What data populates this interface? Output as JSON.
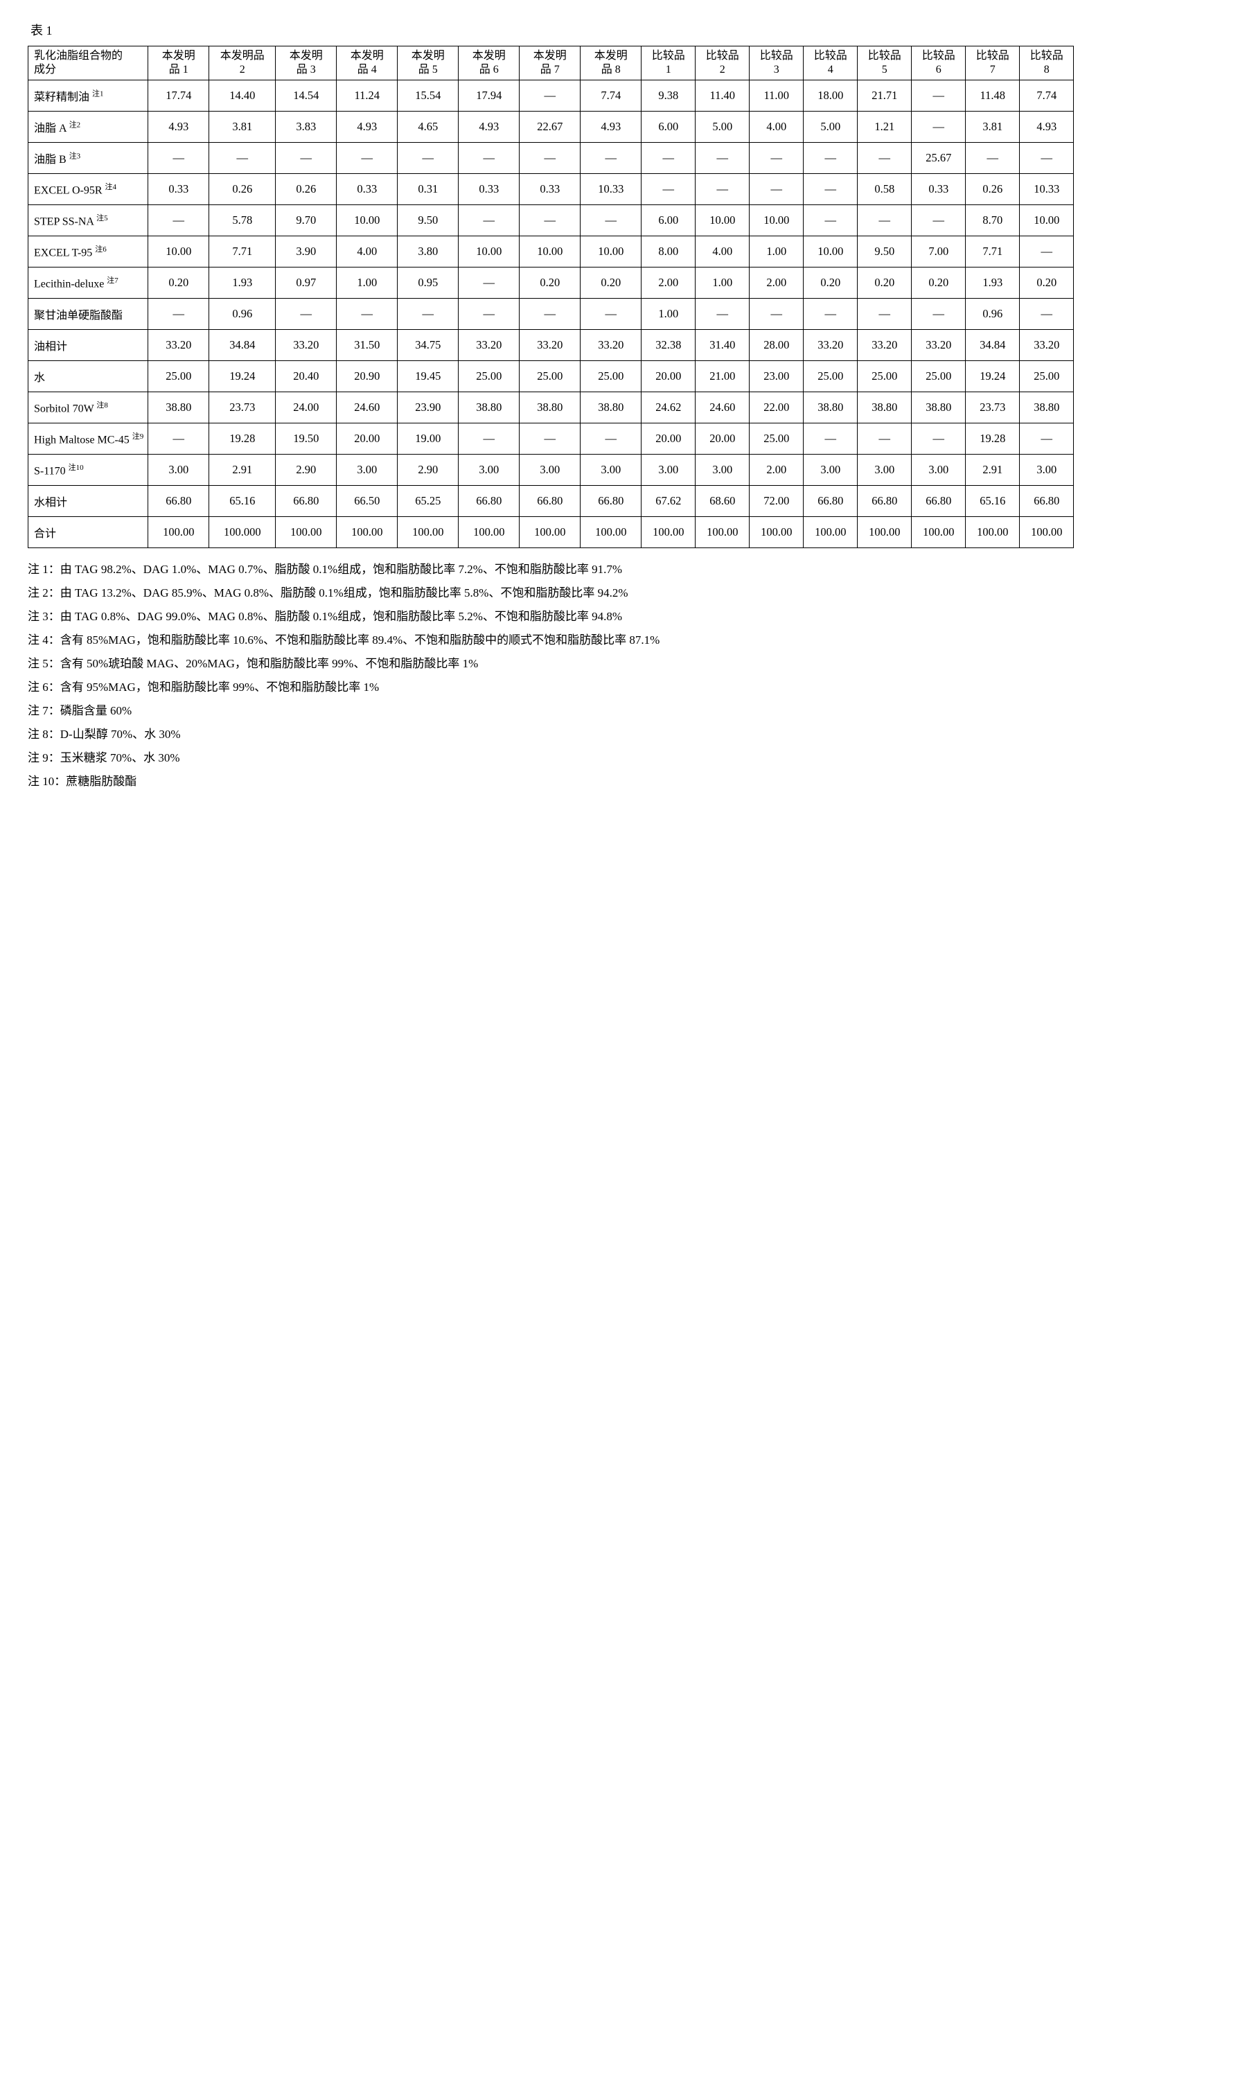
{
  "caption": "表 1",
  "col_header_label": "乳化油脂组合物的\n成分",
  "inv_label_prefix": "本发明\n品",
  "inv_label_2": "本发明品\n2",
  "comp_label_prefix": "比较品",
  "inv_nums": [
    "1",
    "2",
    "3",
    "4",
    "5",
    "6",
    "7",
    "8"
  ],
  "comp_nums": [
    "1",
    "2",
    "3",
    "4",
    "5",
    "6",
    "7",
    "8"
  ],
  "rows": [
    {
      "name": "菜籽精制油",
      "sup": "注1",
      "v": [
        "17.74",
        "14.40",
        "14.54",
        "11.24",
        "15.54",
        "17.94",
        "—",
        "7.74",
        "9.38",
        "11.40",
        "11.00",
        "18.00",
        "21.71",
        "—",
        "11.48",
        "7.74"
      ]
    },
    {
      "name": "油脂 A",
      "sup": "注2",
      "v": [
        "4.93",
        "3.81",
        "3.83",
        "4.93",
        "4.65",
        "4.93",
        "22.67",
        "4.93",
        "6.00",
        "5.00",
        "4.00",
        "5.00",
        "1.21",
        "—",
        "3.81",
        "4.93"
      ]
    },
    {
      "name": "油脂 B",
      "sup": "注3",
      "v": [
        "—",
        "—",
        "—",
        "—",
        "—",
        "—",
        "—",
        "—",
        "—",
        "—",
        "—",
        "—",
        "—",
        "25.67",
        "—",
        "—"
      ]
    },
    {
      "name": "EXCEL O-95R",
      "sup": "注4",
      "v": [
        "0.33",
        "0.26",
        "0.26",
        "0.33",
        "0.31",
        "0.33",
        "0.33",
        "10.33",
        "—",
        "—",
        "—",
        "—",
        "0.58",
        "0.33",
        "0.26",
        "10.33"
      ]
    },
    {
      "name": "STEP SS-NA",
      "sup": "注5",
      "v": [
        "—",
        "5.78",
        "9.70",
        "10.00",
        "9.50",
        "—",
        "—",
        "—",
        "6.00",
        "10.00",
        "10.00",
        "—",
        "—",
        "—",
        "8.70",
        "10.00"
      ]
    },
    {
      "name": "EXCEL T-95",
      "sup": "注6",
      "v": [
        "10.00",
        "7.71",
        "3.90",
        "4.00",
        "3.80",
        "10.00",
        "10.00",
        "10.00",
        "8.00",
        "4.00",
        "1.00",
        "10.00",
        "9.50",
        "7.00",
        "7.71",
        "—"
      ]
    },
    {
      "name": "Lecithin-deluxe",
      "sup": "注7",
      "v": [
        "0.20",
        "1.93",
        "0.97",
        "1.00",
        "0.95",
        "—",
        "0.20",
        "0.20",
        "2.00",
        "1.00",
        "2.00",
        "0.20",
        "0.20",
        "0.20",
        "1.93",
        "0.20"
      ]
    },
    {
      "name": "聚甘油单硬脂酸酯",
      "sup": "",
      "v": [
        "—",
        "0.96",
        "—",
        "—",
        "—",
        "—",
        "—",
        "—",
        "1.00",
        "—",
        "—",
        "—",
        "—",
        "—",
        "0.96",
        "—"
      ]
    },
    {
      "name": "油相计",
      "sup": "",
      "v": [
        "33.20",
        "34.84",
        "33.20",
        "31.50",
        "34.75",
        "33.20",
        "33.20",
        "33.20",
        "32.38",
        "31.40",
        "28.00",
        "33.20",
        "33.20",
        "33.20",
        "34.84",
        "33.20"
      ]
    },
    {
      "name": "水",
      "sup": "",
      "v": [
        "25.00",
        "19.24",
        "20.40",
        "20.90",
        "19.45",
        "25.00",
        "25.00",
        "25.00",
        "20.00",
        "21.00",
        "23.00",
        "25.00",
        "25.00",
        "25.00",
        "19.24",
        "25.00"
      ]
    },
    {
      "name": "Sorbitol 70W",
      "sup": "注8",
      "v": [
        "38.80",
        "23.73",
        "24.00",
        "24.60",
        "23.90",
        "38.80",
        "38.80",
        "38.80",
        "24.62",
        "24.60",
        "22.00",
        "38.80",
        "38.80",
        "38.80",
        "23.73",
        "38.80"
      ]
    },
    {
      "name": "High Maltose MC-45",
      "sup": "注9",
      "v": [
        "—",
        "19.28",
        "19.50",
        "20.00",
        "19.00",
        "—",
        "—",
        "—",
        "20.00",
        "20.00",
        "25.00",
        "—",
        "—",
        "—",
        "19.28",
        "—"
      ]
    },
    {
      "name": "S-1170",
      "sup": "注10",
      "v": [
        "3.00",
        "2.91",
        "2.90",
        "3.00",
        "2.90",
        "3.00",
        "3.00",
        "3.00",
        "3.00",
        "3.00",
        "2.00",
        "3.00",
        "3.00",
        "3.00",
        "2.91",
        "3.00"
      ]
    },
    {
      "name": "水相计",
      "sup": "",
      "v": [
        "66.80",
        "65.16",
        "66.80",
        "66.50",
        "65.25",
        "66.80",
        "66.80",
        "66.80",
        "67.62",
        "68.60",
        "72.00",
        "66.80",
        "66.80",
        "66.80",
        "65.16",
        "66.80"
      ]
    },
    {
      "name": "合计",
      "sup": "",
      "v": [
        "100.00",
        "100.000",
        "100.00",
        "100.00",
        "100.00",
        "100.00",
        "100.00",
        "100.00",
        "100.00",
        "100.00",
        "100.00",
        "100.00",
        "100.00",
        "100.00",
        "100.00",
        "100.00"
      ]
    }
  ],
  "notes": [
    "注 1：由 TAG 98.2%、DAG 1.0%、MAG 0.7%、脂肪酸 0.1%组成，饱和脂肪酸比率 7.2%、不饱和脂肪酸比率 91.7%",
    "注 2：由 TAG 13.2%、DAG 85.9%、MAG 0.8%、脂肪酸 0.1%组成，饱和脂肪酸比率 5.8%、不饱和脂肪酸比率 94.2%",
    "注 3：由 TAG 0.8%、DAG 99.0%、MAG 0.8%、脂肪酸 0.1%组成，饱和脂肪酸比率 5.2%、不饱和脂肪酸比率 94.8%",
    "注 4：含有 85%MAG，饱和脂肪酸比率 10.6%、不饱和脂肪酸比率 89.4%、不饱和脂肪酸中的顺式不饱和脂肪酸比率 87.1%",
    "注 5：含有 50%琥珀酸 MAG、20%MAG，饱和脂肪酸比率 99%、不饱和脂肪酸比率 1%",
    "注 6：含有 95%MAG，饱和脂肪酸比率 99%、不饱和脂肪酸比率 1%",
    "注 7：磷脂含量 60%",
    "注 8：D-山梨醇 70%、水 30%",
    "注 9：玉米糖浆 70%、水 30%",
    "注 10：蔗糖脂肪酸酯"
  ]
}
